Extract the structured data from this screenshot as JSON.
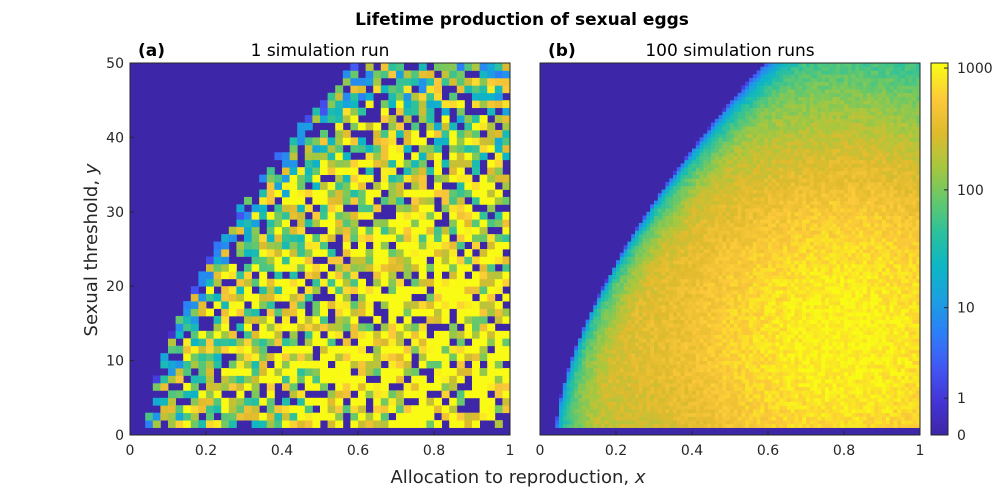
{
  "figure": {
    "title": "Lifetime production of sexual eggs",
    "xlabel_text": "Allocation to reproduction, ",
    "xlabel_var": "x",
    "ylabel_text": "Sexual threshold, ",
    "ylabel_var": "y"
  },
  "chart_data": [
    {
      "type": "heatmap",
      "panel": "(a)",
      "title": "1 simulation run",
      "x_range": [
        0,
        1
      ],
      "y_range": [
        0,
        50
      ],
      "x_ticks": [
        "0",
        "0.2",
        "0.4",
        "0.6",
        "0.8",
        "1"
      ],
      "y_ticks": [
        "0",
        "10",
        "20",
        "30",
        "40",
        "50"
      ],
      "nx": 50,
      "ny": 50,
      "noise": "high",
      "peak_x": 0.8,
      "peak_y": 15,
      "peak_value": 1000,
      "nonzero_boundary": "cells are zero (dark) to the upper-left of the curve x ≈ 0.05 + 0.2·(y/50) + ... ; values rise toward large x, mid y",
      "colormap": "parula",
      "color_scale": "log(1+v)"
    },
    {
      "type": "heatmap",
      "panel": "(b)",
      "title": "100 simulation runs",
      "x_range": [
        0,
        1
      ],
      "y_range": [
        0,
        50
      ],
      "x_ticks": [
        "0",
        "0.2",
        "0.4",
        "0.6",
        "0.8",
        "1"
      ],
      "y_ticks": [],
      "nx": 100,
      "ny": 100,
      "noise": "low",
      "peak_x": 0.8,
      "peak_y": 12,
      "peak_value": 1000,
      "colormap": "parula",
      "color_scale": "log(1+v)"
    }
  ],
  "colorbar": {
    "ticks": [
      "0",
      "1",
      "10",
      "100",
      "1000"
    ],
    "tick_values": [
      0,
      1,
      10,
      100,
      1000
    ],
    "max_value": 1100
  },
  "colors": {
    "parula": [
      "#3e26a8",
      "#4435d6",
      "#4258f3",
      "#2d7ef8",
      "#1b9fe0",
      "#0db6c4",
      "#2cc19d",
      "#67c86a",
      "#a9c73e",
      "#e0ba2d",
      "#fcc93a",
      "#f9fb15"
    ],
    "axis": "#262626"
  }
}
